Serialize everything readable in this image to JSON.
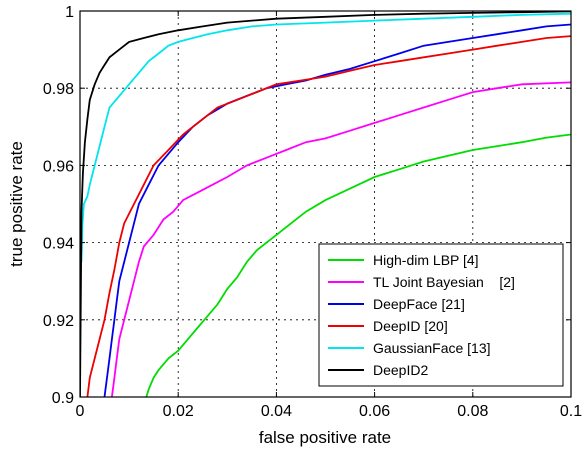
{
  "chart_data": {
    "type": "line",
    "title": "",
    "xlabel": "false positive rate",
    "ylabel": "true positive rate",
    "xlim": [
      0,
      0.1
    ],
    "ylim": [
      0.9,
      1.0
    ],
    "xticks": [
      "0",
      "0.02",
      "0.04",
      "0.06",
      "0.08",
      "0.1"
    ],
    "yticks": [
      "0.9",
      "0.92",
      "0.94",
      "0.96",
      "0.98",
      "1"
    ],
    "grid": true,
    "legend_position": "bottom-right",
    "series": [
      {
        "name": "High-dim LBP [4]",
        "color": "#00dd00",
        "points": [
          [
            0.0135,
            0.9
          ],
          [
            0.014,
            0.902
          ],
          [
            0.015,
            0.905
          ],
          [
            0.016,
            0.907
          ],
          [
            0.018,
            0.91
          ],
          [
            0.02,
            0.912
          ],
          [
            0.022,
            0.915
          ],
          [
            0.024,
            0.918
          ],
          [
            0.026,
            0.921
          ],
          [
            0.028,
            0.924
          ],
          [
            0.03,
            0.928
          ],
          [
            0.032,
            0.931
          ],
          [
            0.034,
            0.935
          ],
          [
            0.036,
            0.938
          ],
          [
            0.038,
            0.94
          ],
          [
            0.04,
            0.942
          ],
          [
            0.043,
            0.945
          ],
          [
            0.046,
            0.948
          ],
          [
            0.05,
            0.951
          ],
          [
            0.055,
            0.954
          ],
          [
            0.06,
            0.957
          ],
          [
            0.065,
            0.959
          ],
          [
            0.07,
            0.961
          ],
          [
            0.075,
            0.9625
          ],
          [
            0.08,
            0.964
          ],
          [
            0.085,
            0.965
          ],
          [
            0.09,
            0.966
          ],
          [
            0.095,
            0.9672
          ],
          [
            0.1,
            0.968
          ]
        ]
      },
      {
        "name": "TL Joint Bayesian    [2]",
        "color": "#ff00ff",
        "points": [
          [
            0.0065,
            0.9
          ],
          [
            0.007,
            0.905
          ],
          [
            0.0075,
            0.91
          ],
          [
            0.008,
            0.915
          ],
          [
            0.009,
            0.92
          ],
          [
            0.01,
            0.925
          ],
          [
            0.011,
            0.93
          ],
          [
            0.012,
            0.935
          ],
          [
            0.013,
            0.939
          ],
          [
            0.015,
            0.942
          ],
          [
            0.017,
            0.946
          ],
          [
            0.019,
            0.948
          ],
          [
            0.021,
            0.951
          ],
          [
            0.024,
            0.953
          ],
          [
            0.027,
            0.955
          ],
          [
            0.03,
            0.957
          ],
          [
            0.034,
            0.96
          ],
          [
            0.038,
            0.962
          ],
          [
            0.042,
            0.964
          ],
          [
            0.046,
            0.966
          ],
          [
            0.05,
            0.967
          ],
          [
            0.055,
            0.969
          ],
          [
            0.06,
            0.971
          ],
          [
            0.065,
            0.973
          ],
          [
            0.07,
            0.975
          ],
          [
            0.075,
            0.977
          ],
          [
            0.08,
            0.979
          ],
          [
            0.085,
            0.98
          ],
          [
            0.09,
            0.981
          ],
          [
            0.1,
            0.9815
          ]
        ]
      },
      {
        "name": "DeepFace [21]",
        "color": "#0000ee",
        "points": [
          [
            0.005,
            0.9
          ],
          [
            0.0055,
            0.905
          ],
          [
            0.006,
            0.91
          ],
          [
            0.0065,
            0.915
          ],
          [
            0.007,
            0.92
          ],
          [
            0.0075,
            0.925
          ],
          [
            0.008,
            0.93
          ],
          [
            0.009,
            0.935
          ],
          [
            0.01,
            0.94
          ],
          [
            0.011,
            0.945
          ],
          [
            0.012,
            0.95
          ],
          [
            0.014,
            0.955
          ],
          [
            0.016,
            0.96
          ],
          [
            0.018,
            0.963
          ],
          [
            0.02,
            0.966
          ],
          [
            0.023,
            0.97
          ],
          [
            0.026,
            0.973
          ],
          [
            0.03,
            0.976
          ],
          [
            0.034,
            0.978
          ],
          [
            0.038,
            0.98
          ],
          [
            0.042,
            0.981
          ],
          [
            0.046,
            0.982
          ],
          [
            0.05,
            0.9835
          ],
          [
            0.055,
            0.985
          ],
          [
            0.06,
            0.987
          ],
          [
            0.065,
            0.989
          ],
          [
            0.07,
            0.991
          ],
          [
            0.075,
            0.992
          ],
          [
            0.08,
            0.993
          ],
          [
            0.085,
            0.994
          ],
          [
            0.09,
            0.995
          ],
          [
            0.095,
            0.996
          ],
          [
            0.1,
            0.9965
          ]
        ]
      },
      {
        "name": "DeepID [20]",
        "color": "#ee0000",
        "points": [
          [
            0.0015,
            0.9
          ],
          [
            0.002,
            0.905
          ],
          [
            0.003,
            0.91
          ],
          [
            0.004,
            0.915
          ],
          [
            0.005,
            0.92
          ],
          [
            0.006,
            0.927
          ],
          [
            0.007,
            0.933
          ],
          [
            0.008,
            0.94
          ],
          [
            0.009,
            0.945
          ],
          [
            0.011,
            0.95
          ],
          [
            0.013,
            0.955
          ],
          [
            0.015,
            0.96
          ],
          [
            0.018,
            0.964
          ],
          [
            0.021,
            0.968
          ],
          [
            0.024,
            0.971
          ],
          [
            0.028,
            0.975
          ],
          [
            0.032,
            0.977
          ],
          [
            0.036,
            0.979
          ],
          [
            0.04,
            0.981
          ],
          [
            0.045,
            0.982
          ],
          [
            0.05,
            0.983
          ],
          [
            0.055,
            0.9845
          ],
          [
            0.06,
            0.986
          ],
          [
            0.065,
            0.987
          ],
          [
            0.07,
            0.988
          ],
          [
            0.075,
            0.989
          ],
          [
            0.08,
            0.99
          ],
          [
            0.085,
            0.991
          ],
          [
            0.09,
            0.992
          ],
          [
            0.095,
            0.993
          ],
          [
            0.1,
            0.9935
          ]
        ]
      },
      {
        "name": "GaussianFace [13]",
        "color": "#00e5ee",
        "points": [
          [
            0.0003,
            0.935
          ],
          [
            0.0005,
            0.945
          ],
          [
            0.0008,
            0.95
          ],
          [
            0.0015,
            0.952
          ],
          [
            0.002,
            0.955
          ],
          [
            0.003,
            0.96
          ],
          [
            0.004,
            0.965
          ],
          [
            0.005,
            0.97
          ],
          [
            0.006,
            0.975
          ],
          [
            0.008,
            0.978
          ],
          [
            0.01,
            0.981
          ],
          [
            0.012,
            0.984
          ],
          [
            0.014,
            0.987
          ],
          [
            0.016,
            0.989
          ],
          [
            0.018,
            0.991
          ],
          [
            0.02,
            0.992
          ],
          [
            0.023,
            0.993
          ],
          [
            0.026,
            0.994
          ],
          [
            0.03,
            0.995
          ],
          [
            0.035,
            0.996
          ],
          [
            0.04,
            0.9965
          ],
          [
            0.05,
            0.997
          ],
          [
            0.06,
            0.9975
          ],
          [
            0.07,
            0.998
          ],
          [
            0.08,
            0.9985
          ],
          [
            0.09,
            0.999
          ],
          [
            0.1,
            0.9993
          ]
        ]
      },
      {
        "name": "DeepID2",
        "color": "#000000",
        "points": [
          [
            0.0,
            0.9
          ],
          [
            0.0003,
            0.948
          ],
          [
            0.0006,
            0.958
          ],
          [
            0.001,
            0.966
          ],
          [
            0.0015,
            0.972
          ],
          [
            0.002,
            0.977
          ],
          [
            0.003,
            0.981
          ],
          [
            0.004,
            0.984
          ],
          [
            0.005,
            0.986
          ],
          [
            0.006,
            0.988
          ],
          [
            0.008,
            0.99
          ],
          [
            0.01,
            0.992
          ],
          [
            0.013,
            0.993
          ],
          [
            0.016,
            0.994
          ],
          [
            0.02,
            0.995
          ],
          [
            0.025,
            0.996
          ],
          [
            0.03,
            0.997
          ],
          [
            0.04,
            0.998
          ],
          [
            0.05,
            0.9985
          ],
          [
            0.06,
            0.999
          ],
          [
            0.07,
            0.9993
          ],
          [
            0.08,
            0.9995
          ],
          [
            0.09,
            0.9997
          ],
          [
            0.1,
            0.9999
          ]
        ]
      }
    ]
  }
}
